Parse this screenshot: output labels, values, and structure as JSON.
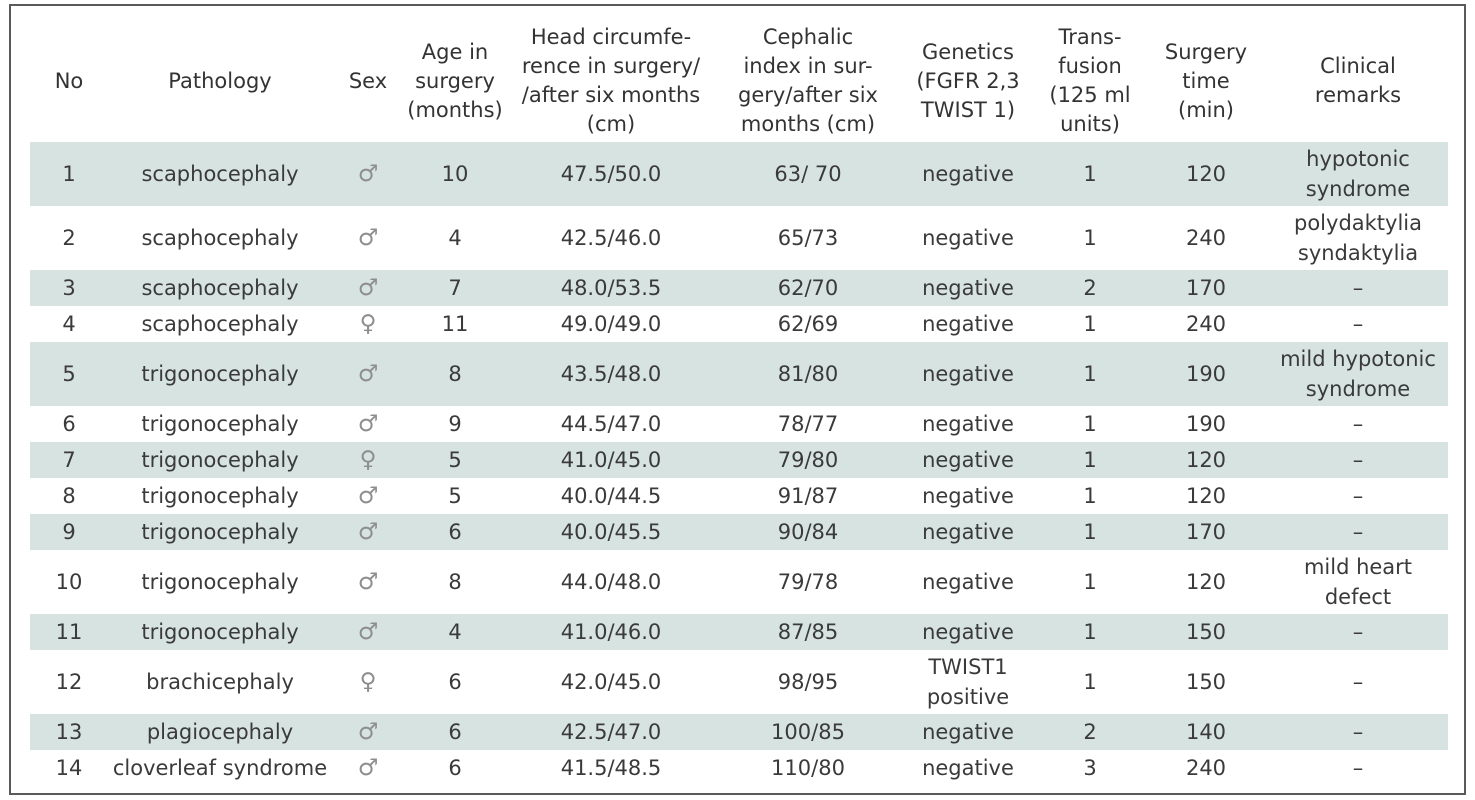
{
  "headers": [
    "No",
    "Pathology",
    "Sex",
    "Age in\nsurgery\n(months)",
    "Head circumfe-\nrence in surgery/\n/after six months\n(cm)",
    "Cephalic\nindex in sur-\ngery/after six\nmonths (cm)",
    "Genetics\n(FGFR 2,3\nTWIST 1)",
    "Trans-\nfusion\n(125 ml\nunits)",
    "Surgery\ntime\n(min)",
    "Clinical\nremarks"
  ],
  "rows": [
    [
      "1",
      "scaphocephaly",
      "♂",
      "10",
      "47.5/50.0",
      "63/ 70",
      "negative",
      "1",
      "120",
      "hypotonic\nsyndrome"
    ],
    [
      "2",
      "scaphocephaly",
      "♂",
      "4",
      "42.5/46.0",
      "65/73",
      "negative",
      "1",
      "240",
      "polydaktylia\nsyndaktylia"
    ],
    [
      "3",
      "scaphocephaly",
      "♂",
      "7",
      "48.0/53.5",
      "62/70",
      "negative",
      "2",
      "170",
      "–"
    ],
    [
      "4",
      "scaphocephaly",
      "♀",
      "11",
      "49.0/49.0",
      "62/69",
      "negative",
      "1",
      "240",
      "–"
    ],
    [
      "5",
      "trigonocephaly",
      "♂",
      "8",
      "43.5/48.0",
      "81/80",
      "negative",
      "1",
      "190",
      "mild hypotonic\nsyndrome"
    ],
    [
      "6",
      "trigonocephaly",
      "♂",
      "9",
      "44.5/47.0",
      "78/77",
      "negative",
      "1",
      "190",
      "–"
    ],
    [
      "7",
      "trigonocephaly",
      "♀",
      "5",
      "41.0/45.0",
      "79/80",
      "negative",
      "1",
      "120",
      "–"
    ],
    [
      "8",
      "trigonocephaly",
      "♂",
      "5",
      "40.0/44.5",
      "91/87",
      "negative",
      "1",
      "120",
      "–"
    ],
    [
      "9",
      "trigonocephaly",
      "♂",
      "6",
      "40.0/45.5",
      "90/84",
      "negative",
      "1",
      "170",
      "–"
    ],
    [
      "10",
      "trigonocephaly",
      "♂",
      "8",
      "44.0/48.0",
      "79/78",
      "negative",
      "1",
      "120",
      "mild heart\ndefect"
    ],
    [
      "11",
      "trigonocephaly",
      "♂",
      "4",
      "41.0/46.0",
      "87/85",
      "negative",
      "1",
      "150",
      "–"
    ],
    [
      "12",
      "brachicephaly",
      "♀",
      "6",
      "42.0/45.0",
      "98/95",
      "TWIST1\npositive",
      "1",
      "150",
      "–"
    ],
    [
      "13",
      "plagiocephaly",
      "♂",
      "6",
      "42.5/47.0",
      "100/85",
      "negative",
      "2",
      "140",
      "–"
    ],
    [
      "14",
      "cloverleaf syndrome",
      "♂",
      "6",
      "41.5/48.5",
      "110/80",
      "negative",
      "3",
      "240",
      "–"
    ]
  ],
  "shade_color": "#d7e3e1"
}
